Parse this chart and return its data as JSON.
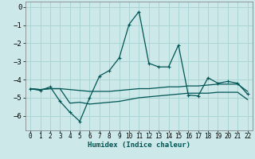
{
  "xlabel": "Humidex (Indice chaleur)",
  "bg_color": "#cce8e8",
  "grid_color": "#aad4d4",
  "line_color": "#005555",
  "xlim": [
    -0.5,
    22.5
  ],
  "ylim": [
    -6.8,
    0.3
  ],
  "yticks": [
    0,
    -1,
    -2,
    -3,
    -4,
    -5,
    -6
  ],
  "xticks": [
    0,
    1,
    2,
    3,
    4,
    5,
    6,
    7,
    8,
    9,
    10,
    11,
    12,
    13,
    14,
    15,
    16,
    17,
    18,
    19,
    20,
    21,
    22
  ],
  "line1_x": [
    0,
    1,
    2,
    3,
    4,
    5,
    6,
    7,
    8,
    9,
    10,
    11,
    12,
    13,
    14,
    15,
    16,
    17,
    18,
    19,
    20,
    21,
    22
  ],
  "line1_y": [
    -4.5,
    -4.6,
    -4.4,
    -5.2,
    -5.8,
    -6.3,
    -5.0,
    -3.8,
    -3.5,
    -2.8,
    -0.95,
    -0.25,
    -3.1,
    -3.3,
    -3.3,
    -2.1,
    -4.85,
    -4.9,
    -3.9,
    -4.2,
    -4.1,
    -4.2,
    -4.8
  ],
  "line2_x": [
    0,
    1,
    2,
    3,
    4,
    5,
    6,
    7,
    8,
    9,
    10,
    11,
    12,
    13,
    14,
    15,
    16,
    17,
    18,
    19,
    20,
    21,
    22
  ],
  "line2_y": [
    -4.5,
    -4.55,
    -4.5,
    -4.5,
    -4.55,
    -4.6,
    -4.65,
    -4.65,
    -4.65,
    -4.6,
    -4.55,
    -4.5,
    -4.5,
    -4.45,
    -4.4,
    -4.4,
    -4.35,
    -4.35,
    -4.3,
    -4.25,
    -4.25,
    -4.25,
    -4.65
  ],
  "line3_x": [
    0,
    1,
    2,
    3,
    4,
    5,
    6,
    7,
    8,
    9,
    10,
    11,
    12,
    13,
    14,
    15,
    16,
    17,
    18,
    19,
    20,
    21,
    22
  ],
  "line3_y": [
    -4.5,
    -4.55,
    -4.5,
    -4.5,
    -5.3,
    -5.25,
    -5.35,
    -5.3,
    -5.25,
    -5.2,
    -5.1,
    -5.0,
    -4.95,
    -4.9,
    -4.85,
    -4.8,
    -4.75,
    -4.75,
    -4.75,
    -4.7,
    -4.7,
    -4.7,
    -5.1
  ]
}
